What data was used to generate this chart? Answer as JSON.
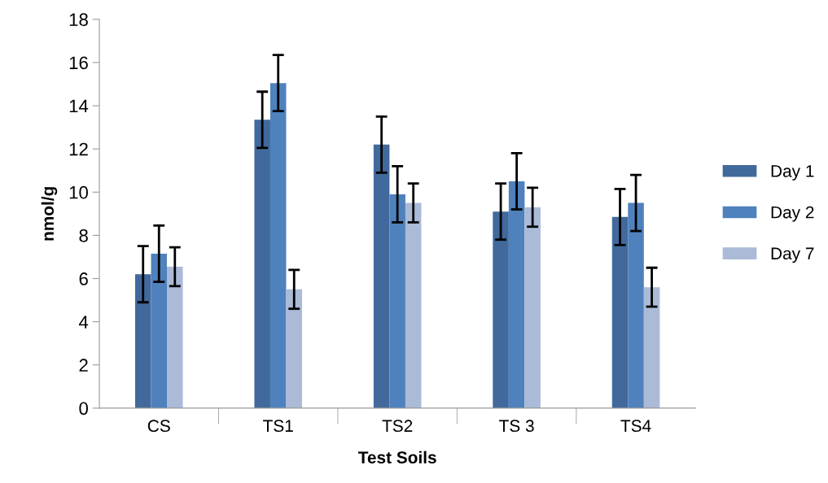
{
  "chart_data": {
    "type": "bar",
    "xlabel": "Test Soils",
    "ylabel": "nmol/g",
    "categories": [
      "CS",
      "TS1",
      "TS2",
      "TS 3",
      "TS4"
    ],
    "series": [
      {
        "name": "Day 1",
        "color": "#41699c",
        "values": [
          6.2,
          13.35,
          12.2,
          9.1,
          8.85
        ],
        "errors": [
          1.3,
          1.3,
          1.3,
          1.3,
          1.3
        ]
      },
      {
        "name": "Day 2",
        "color": "#4f81bd",
        "values": [
          7.15,
          15.05,
          9.9,
          10.5,
          9.5
        ],
        "errors": [
          1.3,
          1.3,
          1.3,
          1.3,
          1.3
        ]
      },
      {
        "name": "Day 7",
        "color": "#aabad7",
        "values": [
          6.55,
          5.5,
          9.5,
          9.3,
          5.6
        ],
        "errors": [
          0.9,
          0.9,
          0.9,
          0.9,
          0.9
        ]
      }
    ],
    "ylim": [
      0,
      18
    ],
    "yticks": [
      0,
      2,
      4,
      6,
      8,
      10,
      12,
      14,
      16,
      18
    ],
    "grid": false,
    "legend": "right"
  }
}
